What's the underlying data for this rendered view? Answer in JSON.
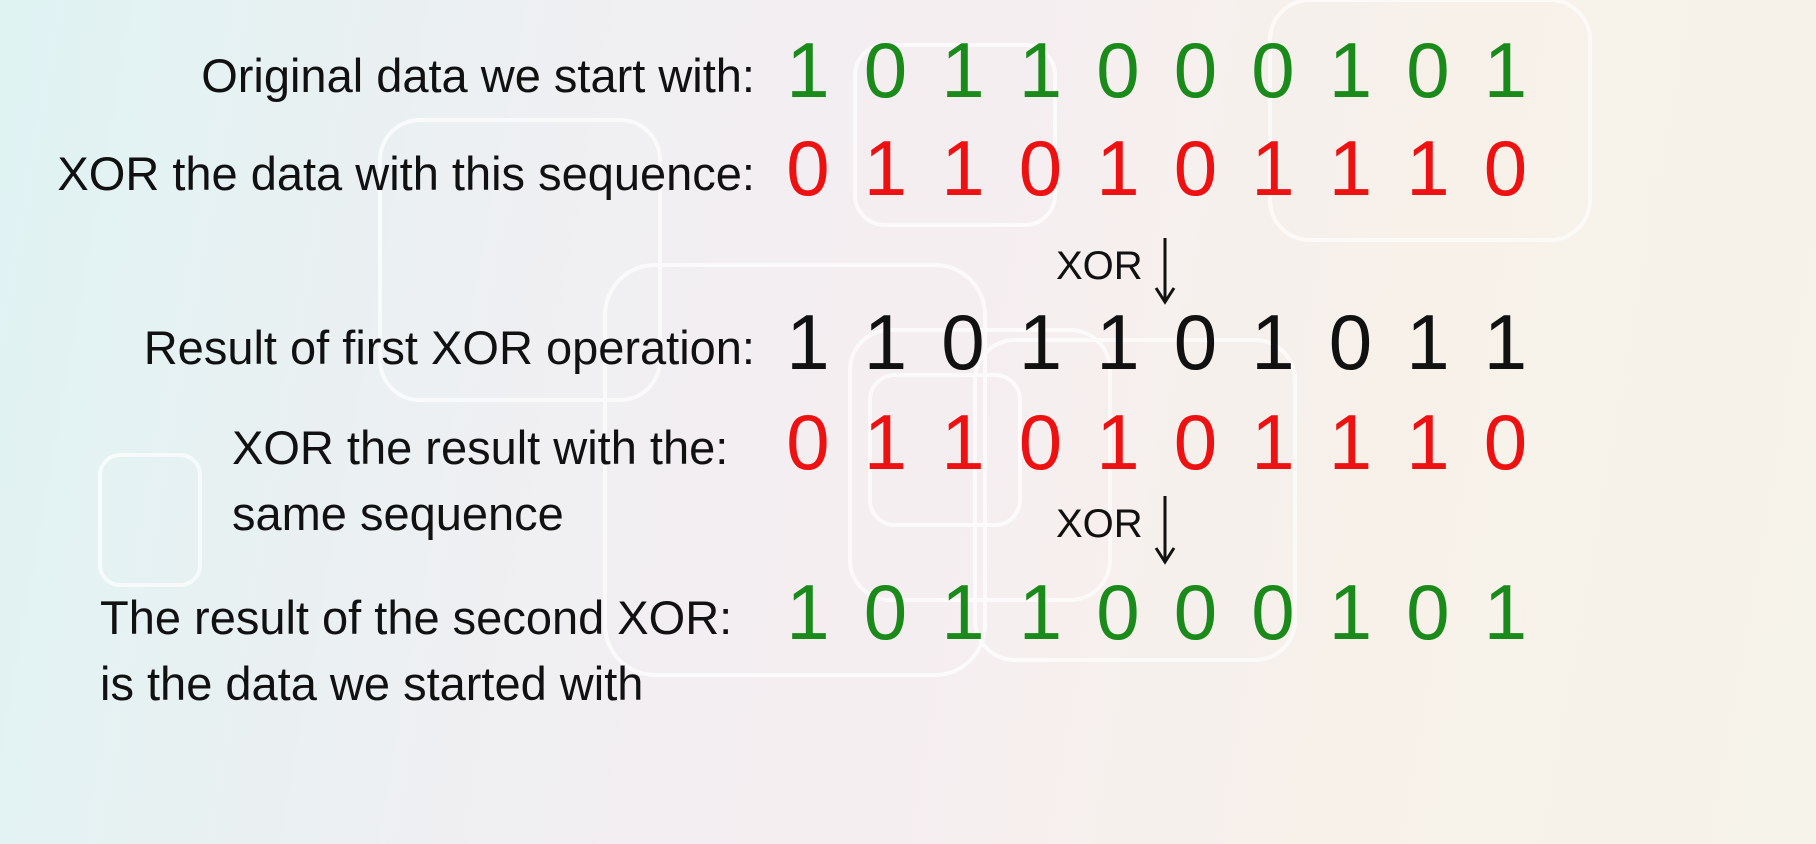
{
  "rows": [
    {
      "label": "Original data we start with:",
      "bits": [
        1,
        0,
        1,
        1,
        0,
        0,
        0,
        1,
        0,
        1
      ]
    },
    {
      "label": "XOR the data with this sequence:",
      "bits": [
        0,
        1,
        1,
        0,
        1,
        0,
        1,
        1,
        1,
        0
      ]
    },
    {
      "label": "Result of first XOR operation:",
      "bits": [
        1,
        1,
        0,
        1,
        1,
        0,
        1,
        0,
        1,
        1
      ]
    },
    {
      "label": "XOR the result with the:",
      "label_line2": "same sequence",
      "bits": [
        0,
        1,
        1,
        0,
        1,
        0,
        1,
        1,
        1,
        0
      ]
    },
    {
      "label": "The result of the second XOR:",
      "label_line2": "is the data we started with",
      "bits": [
        1,
        0,
        1,
        1,
        0,
        0,
        0,
        1,
        0,
        1
      ]
    }
  ],
  "operators": [
    {
      "label": "XOR"
    },
    {
      "label": "XOR"
    }
  ]
}
